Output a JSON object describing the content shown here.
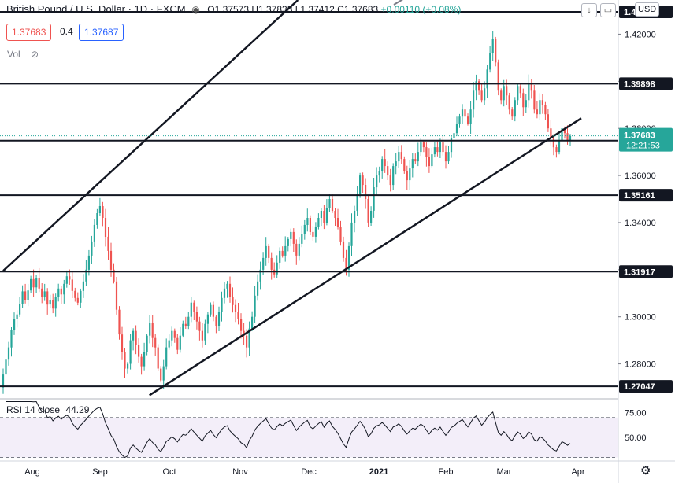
{
  "header": {
    "title": "British Pound / U.S. Dollar · 1D · FXCM",
    "open": "O1.37573",
    "high": "H1.37833",
    "low": "L1.37412",
    "close": "C1.37683",
    "change": "+0.00110 (+0.08%)",
    "bid": "1.37683",
    "spread": "0.4",
    "ask": "1.37687",
    "vol_label": "Vol",
    "currency": "USD",
    "down_arrow": "↓"
  },
  "rsi": {
    "label": "RSI 14 close",
    "value": "44.29",
    "ticks": [
      "75.00",
      "50.00"
    ]
  },
  "chart_data": {
    "type": "candlestick",
    "x_ticks": [
      "Aug",
      "Sep",
      "Oct",
      "Nov",
      "Dec",
      "2021",
      "Feb",
      "Mar",
      "Apr"
    ],
    "y_ticks": [
      1.42,
      1.4,
      1.38,
      1.36,
      1.34,
      1.32,
      1.3,
      1.28
    ],
    "ylim": [
      1.2655,
      1.4345
    ],
    "horizontal_levels": [
      {
        "value": 1.39898,
        "label": "1.39898"
      },
      {
        "value": 1.37479,
        "label": "1.37479"
      },
      {
        "value": 1.35161,
        "label": "1.35161"
      },
      {
        "value": 1.31917,
        "label": "1.31917"
      },
      {
        "value": 1.27047,
        "label": "1.27047"
      }
    ],
    "top_level": {
      "value": 1.4295,
      "label": "1.42xx"
    },
    "current_price": {
      "value": 1.37683,
      "label": "1.37683",
      "countdown": "12:21:53"
    },
    "colors": {
      "up": "#26a69a",
      "down": "#ef5350",
      "level": "#131722",
      "price_tag": "#26a69a",
      "rsi": "#131722"
    },
    "trendlines": [
      {
        "name": "upper-channel",
        "from": [
          "2020-07-20",
          1.3195
        ],
        "to": [
          "2020-11-26",
          1.4345
        ]
      },
      {
        "name": "lower-channel",
        "from": [
          "2020-09-22",
          1.2667
        ],
        "to": [
          "2021-03-30",
          1.3843
        ]
      }
    ],
    "series": [
      {
        "start": 1.27,
        "end": 1.2755,
        "closes": [
          1.2755,
          1.2818,
          1.287,
          1.2945,
          1.299,
          1.301,
          1.3055,
          1.3108,
          1.307,
          1.3112,
          1.316,
          1.3125,
          1.3165,
          1.312,
          1.3085,
          1.3108,
          1.3052,
          1.307,
          1.3035,
          1.3085,
          1.312,
          1.3095,
          1.314,
          1.3172,
          1.3158,
          1.311,
          1.308,
          1.306,
          1.311,
          1.315,
          1.32,
          1.326,
          1.332,
          1.339,
          1.344,
          1.347,
          1.342,
          1.334,
          1.328,
          1.32,
          1.315,
          1.303,
          1.2925,
          1.285,
          1.278,
          1.28,
          1.29,
          1.294,
          1.288,
          1.283,
          1.279,
          1.285,
          1.292,
          1.2975,
          1.291,
          1.287,
          1.278,
          1.273,
          1.279,
          1.287,
          1.29,
          1.294,
          1.291,
          1.286,
          1.292,
          1.297,
          1.296,
          1.3,
          1.306,
          1.302,
          1.298,
          1.294,
          1.29,
          1.297,
          1.301,
          1.305,
          1.3,
          1.296,
          1.302,
          1.308,
          1.312,
          1.314,
          1.3085,
          1.305,
          1.302,
          1.299,
          1.294,
          1.292,
          1.287,
          1.295,
          1.3,
          1.309,
          1.315,
          1.32,
          1.325,
          1.33,
          1.325,
          1.32,
          1.318,
          1.323,
          1.328,
          1.326,
          1.33,
          1.333,
          1.336,
          1.331,
          1.326,
          1.331,
          1.335,
          1.339,
          1.342,
          1.336,
          1.334,
          1.338,
          1.342,
          1.345,
          1.34,
          1.346,
          1.35,
          1.345,
          1.342,
          1.338,
          1.332,
          1.325,
          1.32,
          1.33,
          1.34,
          1.345,
          1.352,
          1.36,
          1.356,
          1.35,
          1.34,
          1.345,
          1.355,
          1.36,
          1.362,
          1.367,
          1.364,
          1.36,
          1.356,
          1.364,
          1.366,
          1.37,
          1.367,
          1.362,
          1.358,
          1.363,
          1.367,
          1.366,
          1.37,
          1.374,
          1.372,
          1.368,
          1.364,
          1.369,
          1.372,
          1.37,
          1.374,
          1.37,
          1.366,
          1.37,
          1.376,
          1.378,
          1.382,
          1.385,
          1.388,
          1.385,
          1.382,
          1.388,
          1.396,
          1.4,
          1.396,
          1.392,
          1.397,
          1.405,
          1.412,
          1.418,
          1.408,
          1.396,
          1.392,
          1.398,
          1.394,
          1.388,
          1.385,
          1.392,
          1.398,
          1.395,
          1.389,
          1.392,
          1.399,
          1.396,
          1.388,
          1.386,
          1.392,
          1.39,
          1.386,
          1.38,
          1.376,
          1.372,
          1.37,
          1.375,
          1.38,
          1.378,
          1.375,
          1.3768
        ]
      }
    ]
  }
}
